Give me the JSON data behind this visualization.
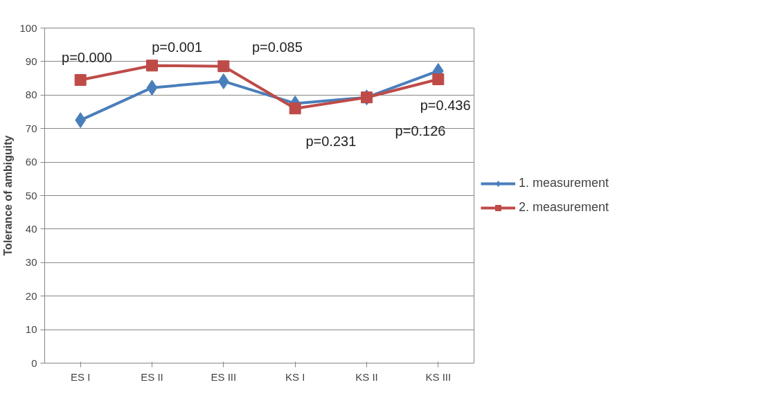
{
  "chart_data": {
    "type": "line",
    "ylabel": "Tolerance of ambiguity",
    "categories": [
      "ES I",
      "ES II",
      "ES III",
      "KS I",
      "KS II",
      "KS III"
    ],
    "series": [
      {
        "name": "1. measurement",
        "color": "#4a7ebb",
        "marker": "diamond",
        "values": [
          72.5,
          82.2,
          84.1,
          77.5,
          79.3,
          87.2
        ]
      },
      {
        "name": "2. measurement",
        "color": "#be4b48",
        "marker": "square",
        "values": [
          84.5,
          88.8,
          88.6,
          76.0,
          79.3,
          84.7
        ]
      }
    ],
    "ylim": [
      0,
      100
    ],
    "yticks": [
      0,
      10,
      20,
      30,
      40,
      50,
      60,
      70,
      80,
      90,
      100
    ],
    "grid": "y",
    "legend": "right",
    "annotations": [
      "p=0.000",
      "p=0.001",
      "p=0.085",
      "p=0.231",
      "p=0.126",
      "p=0.436"
    ]
  }
}
